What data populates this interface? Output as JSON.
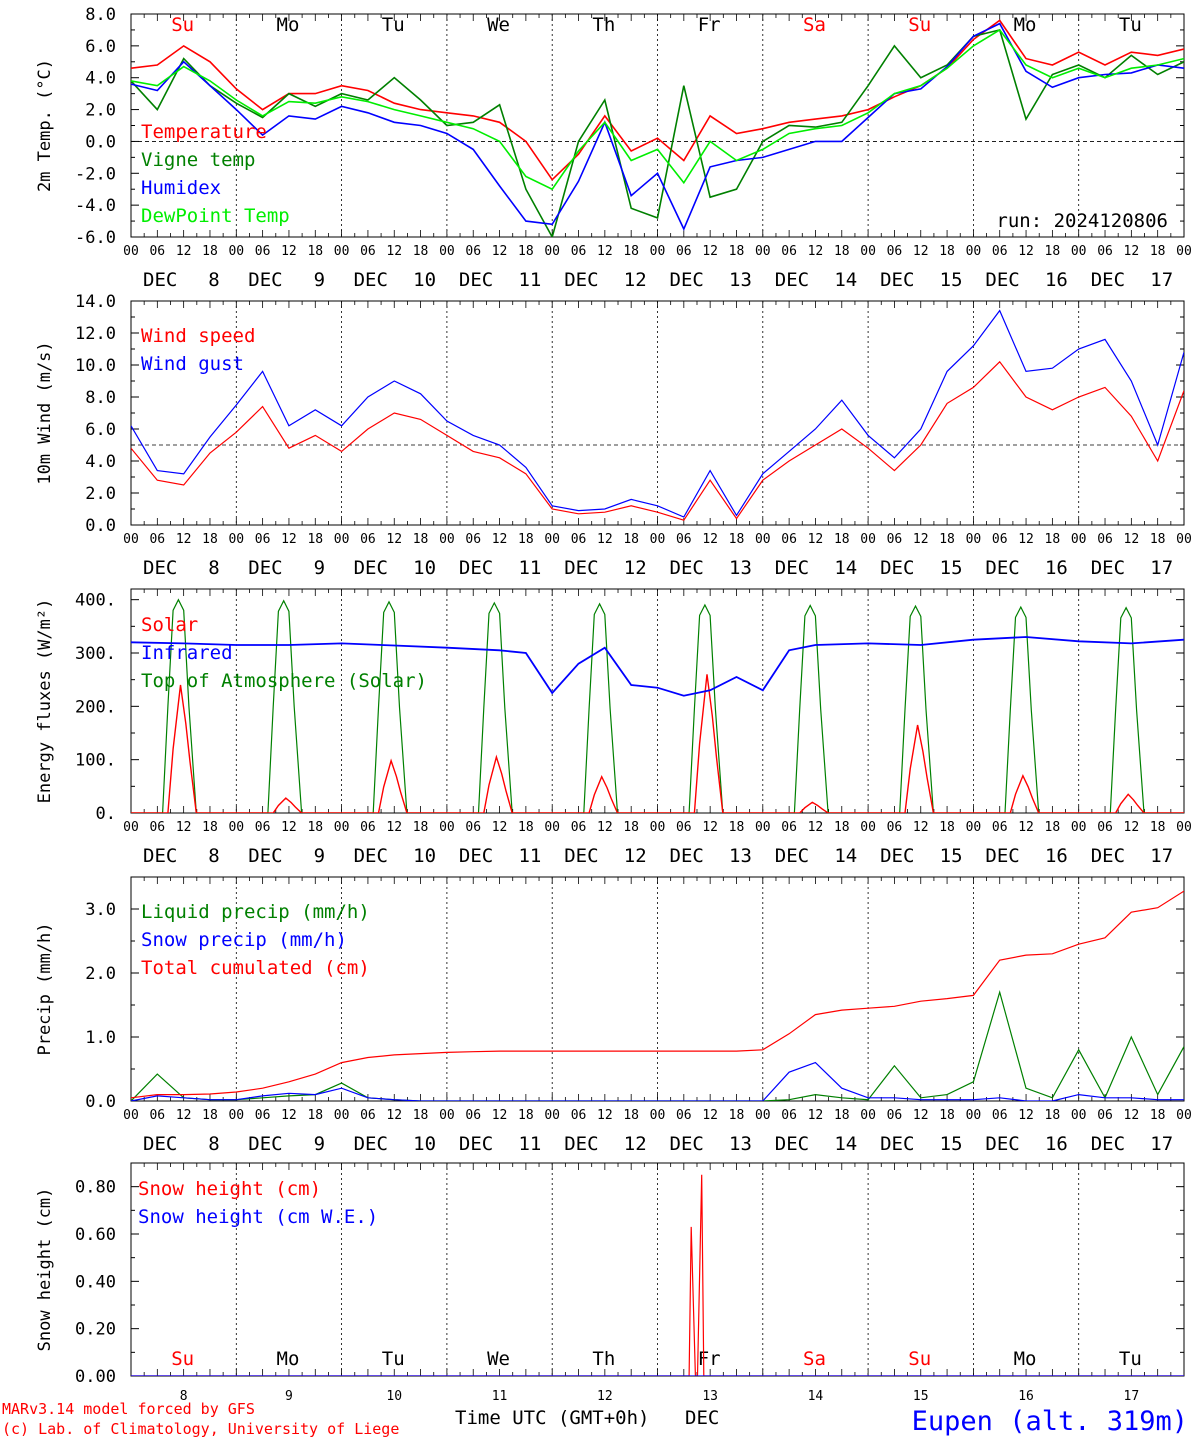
{
  "colors": {
    "red": "#ff0000",
    "green": "#008000",
    "blue": "#0000ff",
    "lightgreen": "#00ee00",
    "axis": "#000000"
  },
  "x_axis": {
    "hour_ticks": [
      "00",
      "06",
      "12",
      "18"
    ],
    "end_tick": "00",
    "date_month": "DEC",
    "dates": [
      "8",
      "9",
      "10",
      "11",
      "12",
      "13",
      "14",
      "15",
      "16",
      "17"
    ],
    "weekdays": [
      {
        "label": "Su",
        "holiday": true
      },
      {
        "label": "Mo",
        "holiday": false
      },
      {
        "label": "Tu",
        "holiday": false
      },
      {
        "label": "We",
        "holiday": false
      },
      {
        "label": "Th",
        "holiday": false
      },
      {
        "label": "Fr",
        "holiday": false
      },
      {
        "label": "Sa",
        "holiday": true
      },
      {
        "label": "Su",
        "holiday": true
      },
      {
        "label": "Mo",
        "holiday": false
      },
      {
        "label": "Tu",
        "holiday": false
      }
    ],
    "title": "Time UTC (GMT+0h)",
    "title_month": "DEC"
  },
  "footer": {
    "credit_line1": "MARv3.14 model forced by GFS",
    "credit_line2": "(c) Lab. of Climatology, University of Liege",
    "station": "Eupen (alt. 319m)"
  },
  "chart_data": [
    {
      "type": "line",
      "ylabel": "2m Temp. (°C)",
      "ylim": [
        -6,
        8
      ],
      "yticks": [
        "-6.0",
        "-4.0",
        "-2.0",
        "0.0",
        "2.0",
        "4.0",
        "6.0",
        "8.0"
      ],
      "ytick_values": [
        -6,
        -4,
        -2,
        0,
        2,
        4,
        6,
        8
      ],
      "ref_line": 0,
      "annotation": "run: 2024120806",
      "x_days": [
        0,
        0.25,
        0.5,
        0.75,
        1,
        1.25,
        1.5,
        1.75,
        2,
        2.25,
        2.5,
        2.75,
        3,
        3.25,
        3.5,
        3.75,
        4,
        4.25,
        4.5,
        4.75,
        5,
        5.25,
        5.5,
        5.75,
        6,
        6.25,
        6.5,
        6.75,
        7,
        7.25,
        7.5,
        7.75,
        8,
        8.25,
        8.5,
        8.75,
        9,
        9.25,
        9.5,
        9.75,
        10
      ],
      "series": [
        {
          "name": "Temperature",
          "color": "red",
          "values": [
            4.6,
            4.8,
            6.0,
            5.0,
            3.3,
            2.0,
            3.0,
            3.0,
            3.5,
            3.2,
            2.4,
            2.0,
            1.8,
            1.6,
            1.2,
            0.0,
            -2.4,
            -0.8,
            1.6,
            -0.6,
            0.2,
            -1.2,
            1.6,
            0.5,
            0.8,
            1.2,
            1.4,
            1.6,
            2.0,
            2.8,
            3.5,
            4.6,
            6.4,
            7.6,
            5.2,
            4.8,
            5.6,
            4.8,
            5.6,
            5.4,
            5.8
          ]
        },
        {
          "name": "Vigne temp",
          "color": "green",
          "values": [
            3.8,
            2.0,
            5.2,
            3.5,
            2.4,
            1.5,
            3.0,
            2.2,
            3.0,
            2.6,
            4.0,
            2.6,
            1.0,
            1.2,
            2.3,
            -3.0,
            -6.0,
            0.0,
            2.6,
            -4.2,
            -4.8,
            3.5,
            -3.5,
            -3.0,
            0.0,
            1.0,
            0.9,
            1.2,
            3.5,
            6.0,
            4.0,
            4.8,
            6.6,
            7.0,
            1.4,
            4.2,
            4.8,
            4.0,
            5.4,
            4.2,
            5.0
          ]
        },
        {
          "name": "Humidex",
          "color": "blue",
          "values": [
            3.6,
            3.2,
            5.0,
            3.5,
            2.0,
            0.4,
            1.6,
            1.4,
            2.2,
            1.8,
            1.2,
            1.0,
            0.5,
            -0.5,
            -2.8,
            -5.0,
            -5.2,
            -2.5,
            1.2,
            -3.4,
            -2.0,
            -5.5,
            -1.6,
            -1.2,
            -1.0,
            -0.5,
            0.0,
            0.0,
            1.5,
            3.0,
            3.3,
            4.7,
            6.6,
            7.4,
            4.4,
            3.4,
            4.0,
            4.2,
            4.3,
            4.8,
            4.6
          ]
        },
        {
          "name": "DewPoint Temp",
          "color": "lightgreen",
          "values": [
            3.8,
            3.5,
            4.7,
            3.8,
            2.6,
            1.6,
            2.5,
            2.4,
            2.8,
            2.5,
            2.0,
            1.6,
            1.2,
            0.8,
            0.0,
            -2.2,
            -3.0,
            -0.6,
            1.2,
            -1.2,
            -0.5,
            -2.6,
            0.0,
            -1.2,
            -0.5,
            0.5,
            0.8,
            1.0,
            1.8,
            3.0,
            3.5,
            4.6,
            6.0,
            7.0,
            4.8,
            4.0,
            4.6,
            4.0,
            4.6,
            4.8,
            5.2
          ]
        }
      ]
    },
    {
      "type": "line",
      "ylabel": "10m Wind (m/s)",
      "ylim": [
        0,
        14
      ],
      "yticks": [
        "0.0",
        "2.0",
        "4.0",
        "6.0",
        "8.0",
        "10.0",
        "12.0",
        "14.0"
      ],
      "ytick_values": [
        0,
        2,
        4,
        6,
        8,
        10,
        12,
        14
      ],
      "ref_line": 5,
      "x_days": [
        0,
        0.25,
        0.5,
        0.75,
        1,
        1.25,
        1.5,
        1.75,
        2,
        2.25,
        2.5,
        2.75,
        3,
        3.25,
        3.5,
        3.75,
        4,
        4.25,
        4.5,
        4.75,
        5,
        5.25,
        5.5,
        5.75,
        6,
        6.25,
        6.5,
        6.75,
        7,
        7.25,
        7.5,
        7.75,
        8,
        8.25,
        8.5,
        8.75,
        9,
        9.25,
        9.5,
        9.75,
        10
      ],
      "series": [
        {
          "name": "Wind speed",
          "color": "red",
          "values": [
            4.8,
            2.8,
            2.5,
            4.5,
            5.8,
            7.4,
            4.8,
            5.6,
            4.6,
            6.0,
            7.0,
            6.6,
            5.6,
            4.6,
            4.2,
            3.2,
            1.0,
            0.7,
            0.8,
            1.2,
            0.8,
            0.3,
            2.8,
            0.4,
            2.8,
            4.0,
            5.0,
            6.0,
            4.8,
            3.4,
            5.0,
            7.6,
            8.6,
            10.2,
            8.0,
            7.2,
            8.0,
            8.6,
            6.8,
            4.0,
            8.4
          ]
        },
        {
          "name": "Wind gust",
          "color": "blue",
          "values": [
            6.2,
            3.4,
            3.2,
            5.5,
            7.5,
            9.6,
            6.2,
            7.2,
            6.2,
            8.0,
            9.0,
            8.2,
            6.5,
            5.6,
            5.0,
            3.6,
            1.2,
            0.9,
            1.0,
            1.6,
            1.2,
            0.5,
            3.4,
            0.6,
            3.2,
            4.6,
            6.0,
            7.8,
            5.6,
            4.2,
            6.0,
            9.6,
            11.2,
            13.4,
            9.6,
            9.8,
            11.0,
            11.6,
            9.0,
            5.0,
            10.8
          ]
        }
      ]
    },
    {
      "type": "line",
      "ylabel": "Energy fluxes (W/m²)",
      "ylim": [
        0,
        420
      ],
      "yticks": [
        "0.",
        "100.",
        "200.",
        "300.",
        "400."
      ],
      "ytick_values": [
        0,
        100,
        200,
        300,
        400
      ],
      "day_peaks": [
        {
          "solar": 240,
          "toa": 400
        },
        {
          "solar": 28,
          "toa": 398
        },
        {
          "solar": 98,
          "toa": 396
        },
        {
          "solar": 105,
          "toa": 394
        },
        {
          "solar": 68,
          "toa": 392
        },
        {
          "solar": 260,
          "toa": 390
        },
        {
          "solar": 20,
          "toa": 389
        },
        {
          "solar": 165,
          "toa": 388
        },
        {
          "solar": 70,
          "toa": 386
        },
        {
          "solar": 35,
          "toa": 385
        }
      ],
      "infrared": {
        "x_days": [
          0,
          0.5,
          1,
          1.5,
          2,
          2.5,
          3,
          3.5,
          3.75,
          4,
          4.25,
          4.5,
          4.75,
          5,
          5.25,
          5.5,
          5.75,
          6,
          6.25,
          6.5,
          7,
          7.5,
          8,
          8.5,
          9,
          9.5,
          10
        ],
        "values": [
          320,
          318,
          315,
          315,
          318,
          314,
          310,
          305,
          300,
          225,
          280,
          310,
          240,
          235,
          220,
          230,
          255,
          230,
          305,
          315,
          318,
          315,
          325,
          330,
          322,
          318,
          325
        ]
      },
      "series": [
        {
          "name": "Solar",
          "color": "red"
        },
        {
          "name": "Infrared",
          "color": "blue"
        },
        {
          "name": "Top of Atmosphere (Solar)",
          "color": "green"
        }
      ]
    },
    {
      "type": "line",
      "ylabel": "Precip (mm/h)",
      "ylim": [
        0,
        3.5
      ],
      "yticks": [
        "0.0",
        "1.0",
        "2.0",
        "3.0"
      ],
      "ytick_values": [
        0,
        1,
        2,
        3
      ],
      "x_days": [
        0,
        0.25,
        0.5,
        0.75,
        1,
        1.25,
        1.5,
        1.75,
        2,
        2.25,
        2.5,
        2.75,
        3,
        3.25,
        3.5,
        3.75,
        4,
        4.25,
        4.5,
        4.75,
        5,
        5.25,
        5.5,
        5.75,
        6,
        6.25,
        6.5,
        6.75,
        7,
        7.25,
        7.5,
        7.75,
        8,
        8.25,
        8.5,
        8.75,
        9,
        9.25,
        9.5,
        9.75,
        10
      ],
      "series": [
        {
          "name": "Liquid precip (mm/h)",
          "color": "green",
          "values": [
            0.0,
            0.42,
            0.05,
            0.02,
            0.02,
            0.05,
            0.08,
            0.1,
            0.28,
            0.05,
            0.02,
            0.0,
            0.0,
            0.0,
            0.0,
            0.0,
            0.0,
            0.0,
            0.0,
            0.0,
            0.0,
            0.0,
            0.0,
            0.0,
            0.0,
            0.02,
            0.1,
            0.05,
            0.02,
            0.55,
            0.05,
            0.1,
            0.3,
            1.7,
            0.2,
            0.05,
            0.8,
            0.05,
            1.0,
            0.1,
            0.85
          ]
        },
        {
          "name": "Snow precip (mm/h)",
          "color": "blue",
          "values": [
            0.0,
            0.08,
            0.05,
            0.02,
            0.02,
            0.08,
            0.12,
            0.1,
            0.2,
            0.05,
            0.02,
            0.0,
            0.0,
            0.0,
            0.0,
            0.0,
            0.0,
            0.0,
            0.0,
            0.0,
            0.0,
            0.0,
            0.0,
            0.0,
            0.0,
            0.45,
            0.6,
            0.2,
            0.05,
            0.05,
            0.02,
            0.02,
            0.02,
            0.05,
            0.0,
            0.0,
            0.1,
            0.05,
            0.05,
            0.02,
            0.02
          ]
        },
        {
          "name": "Total cumulated (cm)",
          "color": "red",
          "values": [
            0.05,
            0.1,
            0.1,
            0.11,
            0.14,
            0.2,
            0.3,
            0.42,
            0.6,
            0.68,
            0.72,
            0.74,
            0.76,
            0.77,
            0.78,
            0.78,
            0.78,
            0.78,
            0.78,
            0.78,
            0.78,
            0.78,
            0.78,
            0.78,
            0.8,
            1.05,
            1.35,
            1.42,
            1.45,
            1.48,
            1.56,
            1.6,
            1.65,
            2.2,
            2.28,
            2.3,
            2.45,
            2.55,
            2.95,
            3.02,
            3.28
          ]
        }
      ]
    },
    {
      "type": "line",
      "ylabel": "Snow height (cm)",
      "ylim": [
        0,
        0.9
      ],
      "yticks": [
        "0.00",
        "0.20",
        "0.40",
        "0.60",
        "0.80"
      ],
      "ytick_values": [
        0,
        0.2,
        0.4,
        0.6,
        0.8
      ],
      "series": [
        {
          "name": "Snow height (cm)",
          "color": "red",
          "x_days": [
            0,
            5.3,
            5.32,
            5.36,
            5.38,
            5.42,
            5.44,
            10
          ],
          "values": [
            0,
            0,
            0.63,
            0,
            0,
            0.85,
            0,
            0
          ]
        },
        {
          "name": "Snow height (cm W.E.)",
          "color": "blue",
          "x_days": [
            0,
            10
          ],
          "values": [
            0,
            0
          ]
        }
      ]
    }
  ]
}
